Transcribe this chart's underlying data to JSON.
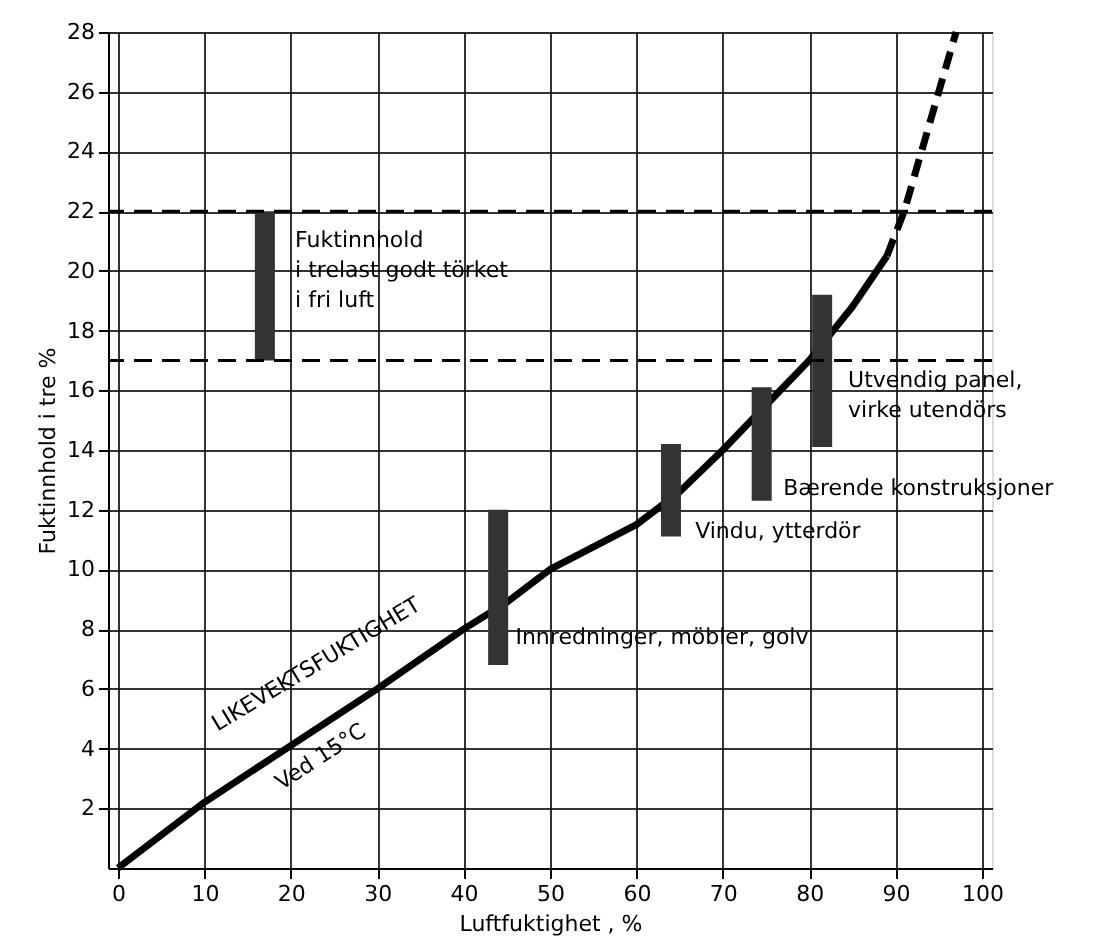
{
  "chart_data": {
    "type": "line",
    "xlabel": "Luftfuktighet , %",
    "ylabel": "Fuktinnhold i tre %",
    "xlim": [
      0,
      100
    ],
    "ylim": [
      0,
      28
    ],
    "xticks": [
      0,
      10,
      20,
      30,
      40,
      50,
      60,
      70,
      80,
      90,
      100
    ],
    "yticks": [
      2,
      4,
      6,
      8,
      10,
      12,
      14,
      16,
      18,
      20,
      22,
      24,
      26,
      28
    ],
    "grid": true,
    "series": [
      {
        "color": "#000000",
        "line_style": "solid",
        "x": [
          0,
          10,
          20,
          30,
          40,
          45,
          50,
          60,
          65,
          70,
          75,
          80,
          85,
          89
        ],
        "values": [
          0,
          2.2,
          4.1,
          6.0,
          8.0,
          8.9,
          10.0,
          11.5,
          12.6,
          14.0,
          15.5,
          17.0,
          18.8,
          20.5
        ]
      },
      {
        "color": "#000000",
        "line_style": "dashed",
        "x": [
          89,
          91,
          93,
          95,
          97
        ],
        "values": [
          20.5,
          22,
          24,
          26,
          28
        ]
      },
      {
        "type": "bar",
        "color": "#333333",
        "x": [
          17,
          44,
          64,
          74.5,
          81.5
        ],
        "base": [
          17,
          6.8,
          11.1,
          12.3,
          14.1
        ],
        "values": [
          5,
          5.2,
          3.1,
          3.8,
          5.1
        ]
      }
    ],
    "ref_lines": [
      {
        "axis": "y",
        "value": 22,
        "color": "#000000",
        "line_style": "dashed"
      },
      {
        "axis": "y",
        "value": 17,
        "color": "#000000",
        "line_style": "dashed"
      }
    ],
    "annotations": [
      "Fuktinnhold\ni trelast godt törket\ni fri luft",
      "Utvendig panel,\nvirke utendörs",
      "Bærende konstruksjoner",
      "Vindu, ytterdör",
      "Innredninger, möbler, golv",
      "LIKEVEKTSFUKTIGHET",
      "Ved 15°C"
    ]
  }
}
